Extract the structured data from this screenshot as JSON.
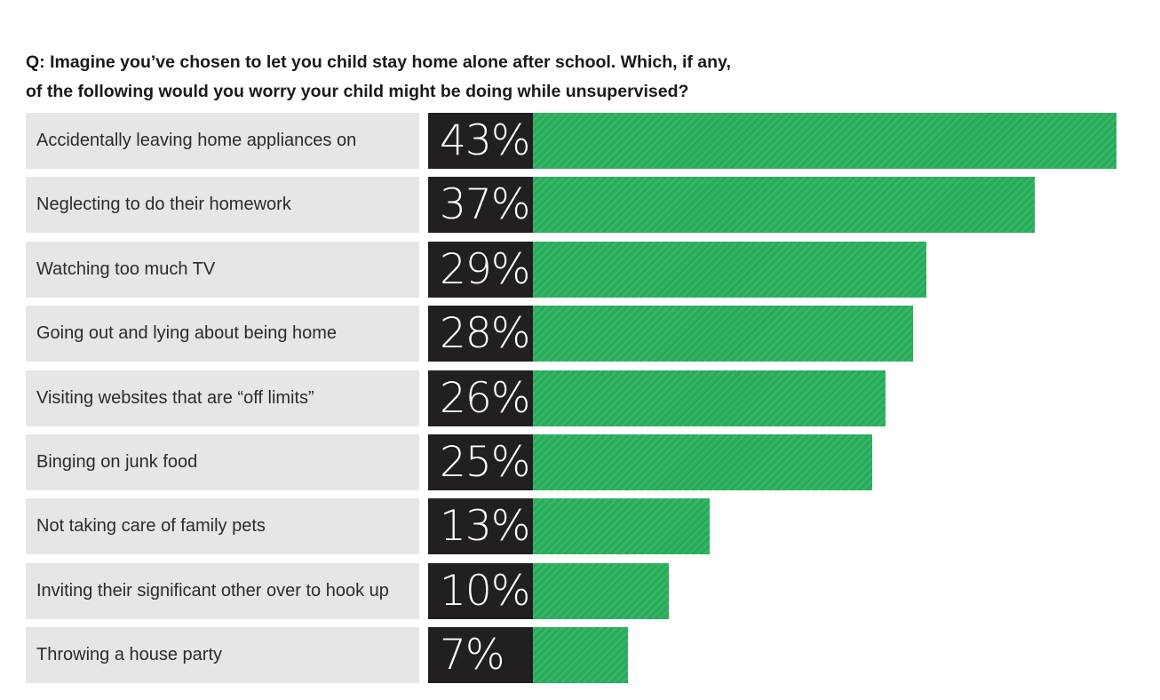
{
  "chart_data": {
    "type": "bar",
    "orientation": "horizontal",
    "title_lines": [
      "Q: Imagine you’ve chosen to let you child stay home alone after school. Which, if any,",
      "of the following would you worry your child might be doing while unsupervised?"
    ],
    "categories": [
      "Accidentally leaving home appliances on",
      "Neglecting to do their homework",
      "Watching too much TV",
      "Going out and lying about being home",
      "Visiting websites that are “off limits”",
      "Binging on junk food",
      "Not taking care of family pets",
      "Inviting their significant other over to hook up",
      "Throwing a house party"
    ],
    "values": [
      43,
      37,
      29,
      28,
      26,
      25,
      13,
      10,
      7
    ],
    "value_labels": [
      "43%",
      "37%",
      "29%",
      "28%",
      "26%",
      "25%",
      "13%",
      "10%",
      "7%"
    ],
    "xlim": [
      0,
      43
    ],
    "grid": false,
    "colors": {
      "bar": "#27ad5a",
      "value_box": "#231f20",
      "label_box": "#e6e6e6"
    }
  }
}
